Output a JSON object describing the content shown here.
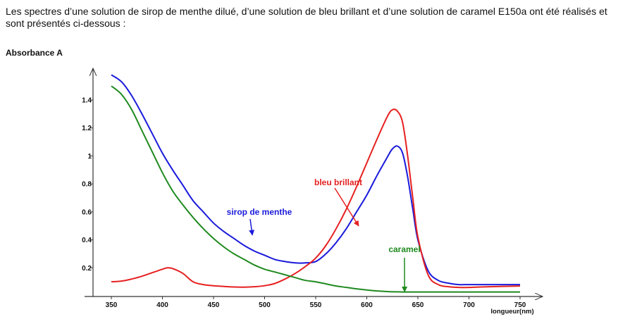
{
  "document": {
    "intro_text": "Les spectres d’une solution de sirop de menthe dilué, d’une solution de bleu brillant et d’une solution de caramel E150a ont été réalisés et sont présentés ci-dessous :"
  },
  "chart_data": {
    "type": "line",
    "title": "",
    "xlabel": "longueur(nm)",
    "ylabel": "Absorbance A",
    "xlim": [
      330,
      760
    ],
    "ylim": [
      0,
      1.62
    ],
    "x_ticks": [
      "350",
      "400",
      "450",
      "500",
      "550",
      "600",
      "650",
      "700",
      "750"
    ],
    "y_ticks": [
      "0.2",
      "0.4",
      "0.6",
      "0.8",
      "1",
      "1.2",
      "1.4"
    ],
    "grid": false,
    "series": [
      {
        "name": "sirop de menthe",
        "color": "#1a1adb",
        "x": [
          350,
          360,
          370,
          380,
          390,
          400,
          410,
          420,
          430,
          440,
          450,
          460,
          470,
          480,
          490,
          500,
          510,
          520,
          530,
          540,
          550,
          560,
          570,
          580,
          590,
          600,
          610,
          620,
          625,
          630,
          635,
          640,
          645,
          650,
          660,
          670,
          680,
          690,
          700,
          720,
          750
        ],
        "values": [
          1.58,
          1.53,
          1.43,
          1.3,
          1.16,
          1.02,
          0.9,
          0.79,
          0.68,
          0.6,
          0.52,
          0.46,
          0.41,
          0.36,
          0.32,
          0.29,
          0.26,
          0.245,
          0.235,
          0.235,
          0.245,
          0.3,
          0.38,
          0.48,
          0.6,
          0.72,
          0.86,
          0.99,
          1.05,
          1.07,
          1.02,
          0.85,
          0.62,
          0.4,
          0.18,
          0.11,
          0.09,
          0.08,
          0.08,
          0.08,
          0.08
        ]
      },
      {
        "name": "bleu brillant",
        "color": "#e62020",
        "x": [
          350,
          360,
          370,
          380,
          390,
          400,
          405,
          410,
          420,
          430,
          440,
          450,
          460,
          470,
          480,
          490,
          500,
          510,
          520,
          530,
          540,
          550,
          560,
          570,
          580,
          590,
          600,
          610,
          620,
          625,
          630,
          635,
          640,
          645,
          650,
          660,
          670,
          680,
          690,
          700,
          720,
          750
        ],
        "values": [
          0.1,
          0.105,
          0.12,
          0.14,
          0.165,
          0.19,
          0.2,
          0.195,
          0.16,
          0.1,
          0.08,
          0.072,
          0.067,
          0.063,
          0.062,
          0.065,
          0.072,
          0.088,
          0.12,
          0.16,
          0.21,
          0.27,
          0.36,
          0.48,
          0.62,
          0.78,
          0.95,
          1.12,
          1.28,
          1.33,
          1.32,
          1.24,
          1.0,
          0.7,
          0.42,
          0.15,
          0.08,
          0.065,
          0.06,
          0.06,
          0.065,
          0.07
        ]
      },
      {
        "name": "caramel",
        "color": "#1f8a1f",
        "x": [
          350,
          360,
          370,
          380,
          390,
          400,
          410,
          420,
          430,
          440,
          450,
          460,
          470,
          480,
          490,
          500,
          510,
          520,
          530,
          540,
          550,
          560,
          570,
          580,
          590,
          600,
          610,
          620,
          630,
          640,
          660,
          680,
          700,
          720,
          750
        ],
        "values": [
          1.5,
          1.44,
          1.33,
          1.18,
          1.03,
          0.88,
          0.75,
          0.65,
          0.56,
          0.48,
          0.41,
          0.35,
          0.3,
          0.26,
          0.22,
          0.19,
          0.17,
          0.15,
          0.13,
          0.11,
          0.1,
          0.085,
          0.07,
          0.06,
          0.05,
          0.042,
          0.035,
          0.03,
          0.028,
          0.027,
          0.027,
          0.027,
          0.027,
          0.027,
          0.027
        ]
      }
    ],
    "annotations": [
      {
        "text": "sirop de menthe",
        "series": "sirop de menthe",
        "arrow_to": [
          488,
          0.435
        ]
      },
      {
        "text": "bleu brillant",
        "series": "bleu brillant",
        "arrow_to": [
          592,
          0.5
        ]
      },
      {
        "text": "caramel",
        "series": "caramel",
        "arrow_to": [
          637,
          0.03
        ]
      }
    ]
  }
}
